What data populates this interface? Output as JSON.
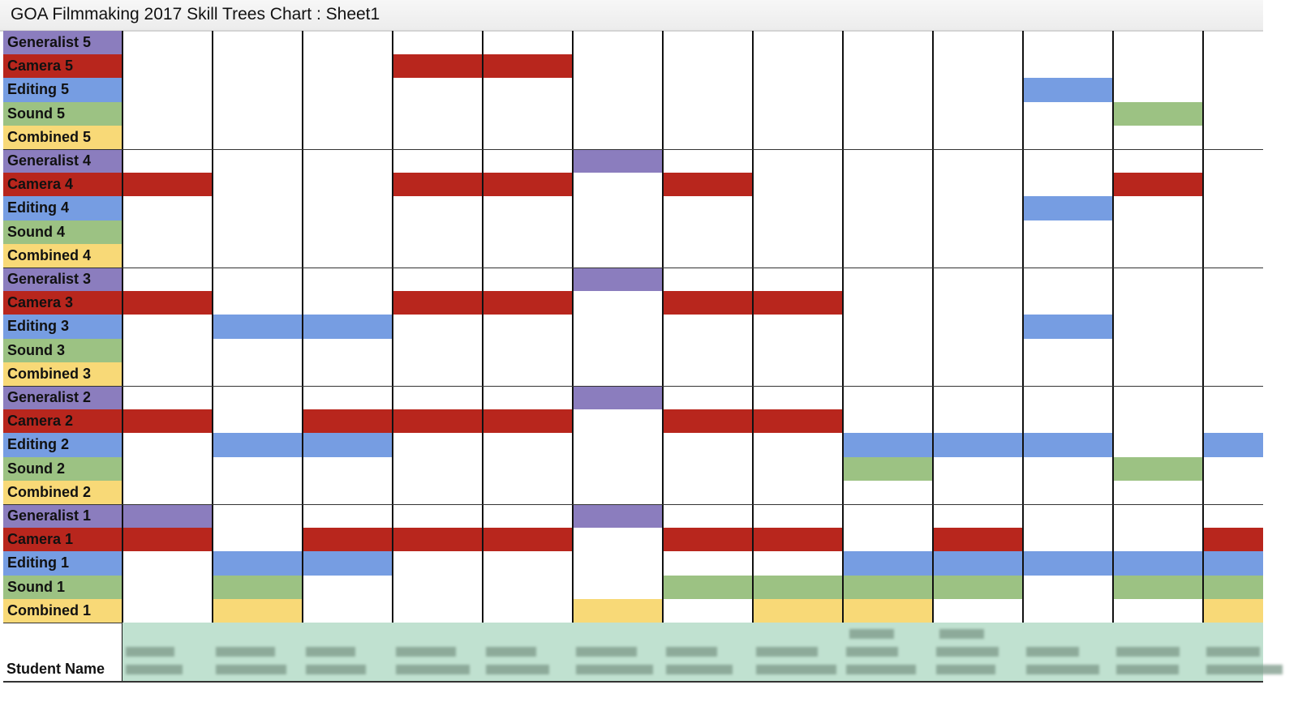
{
  "window": {
    "title": "GOA Filmmaking 2017 Skill Trees Chart : Sheet1"
  },
  "colors": {
    "Generalist": "#8b7dbe",
    "Camera": "#b8261d",
    "Editing": "#769de2",
    "Sound": "#9cc283",
    "Combined": "#f8d977",
    "student_row": "#c0e1d0"
  },
  "chart_data": {
    "type": "table",
    "title": "GOA Filmmaking 2017 Skill Trees Chart : Sheet1",
    "xlabel": "Student Name",
    "student_names_visible": false,
    "student_count_visible": 13,
    "rows": [
      {
        "label": "Generalist 5",
        "track": "Generalist",
        "filled": [
          0,
          0,
          0,
          0,
          0,
          0,
          0,
          0,
          0,
          0,
          0,
          0,
          0
        ]
      },
      {
        "label": "Camera 5",
        "track": "Camera",
        "filled": [
          0,
          0,
          0,
          1,
          1,
          0,
          0,
          0,
          0,
          0,
          0,
          0,
          0
        ]
      },
      {
        "label": "Editing 5",
        "track": "Editing",
        "filled": [
          0,
          0,
          0,
          0,
          0,
          0,
          0,
          0,
          0,
          0,
          1,
          0,
          0
        ]
      },
      {
        "label": "Sound 5",
        "track": "Sound",
        "filled": [
          0,
          0,
          0,
          0,
          0,
          0,
          0,
          0,
          0,
          0,
          0,
          1,
          0
        ]
      },
      {
        "label": "Combined 5",
        "track": "Combined",
        "filled": [
          0,
          0,
          0,
          0,
          0,
          0,
          0,
          0,
          0,
          0,
          0,
          0,
          0
        ]
      },
      {
        "label": "Generalist 4",
        "track": "Generalist",
        "filled": [
          0,
          0,
          0,
          0,
          0,
          1,
          0,
          0,
          0,
          0,
          0,
          0,
          0
        ]
      },
      {
        "label": "Camera 4",
        "track": "Camera",
        "filled": [
          1,
          0,
          0,
          1,
          1,
          0,
          1,
          0,
          0,
          0,
          0,
          1,
          0
        ]
      },
      {
        "label": "Editing 4",
        "track": "Editing",
        "filled": [
          0,
          0,
          0,
          0,
          0,
          0,
          0,
          0,
          0,
          0,
          1,
          0,
          0
        ]
      },
      {
        "label": "Sound 4",
        "track": "Sound",
        "filled": [
          0,
          0,
          0,
          0,
          0,
          0,
          0,
          0,
          0,
          0,
          0,
          0,
          0
        ]
      },
      {
        "label": "Combined 4",
        "track": "Combined",
        "filled": [
          0,
          0,
          0,
          0,
          0,
          0,
          0,
          0,
          0,
          0,
          0,
          0,
          0
        ]
      },
      {
        "label": "Generalist 3",
        "track": "Generalist",
        "filled": [
          0,
          0,
          0,
          0,
          0,
          1,
          0,
          0,
          0,
          0,
          0,
          0,
          0
        ]
      },
      {
        "label": "Camera 3",
        "track": "Camera",
        "filled": [
          1,
          0,
          0,
          1,
          1,
          0,
          1,
          1,
          0,
          0,
          0,
          0,
          0
        ]
      },
      {
        "label": "Editing 3",
        "track": "Editing",
        "filled": [
          0,
          1,
          1,
          0,
          0,
          0,
          0,
          0,
          0,
          0,
          1,
          0,
          0
        ]
      },
      {
        "label": "Sound 3",
        "track": "Sound",
        "filled": [
          0,
          0,
          0,
          0,
          0,
          0,
          0,
          0,
          0,
          0,
          0,
          0,
          0
        ]
      },
      {
        "label": "Combined 3",
        "track": "Combined",
        "filled": [
          0,
          0,
          0,
          0,
          0,
          0,
          0,
          0,
          0,
          0,
          0,
          0,
          0
        ]
      },
      {
        "label": "Generalist 2",
        "track": "Generalist",
        "filled": [
          0,
          0,
          0,
          0,
          0,
          1,
          0,
          0,
          0,
          0,
          0,
          0,
          0
        ]
      },
      {
        "label": "Camera 2",
        "track": "Camera",
        "filled": [
          1,
          0,
          1,
          1,
          1,
          0,
          1,
          1,
          0,
          0,
          0,
          0,
          0
        ]
      },
      {
        "label": "Editing 2",
        "track": "Editing",
        "filled": [
          0,
          1,
          1,
          0,
          0,
          0,
          0,
          0,
          1,
          1,
          1,
          0,
          1
        ]
      },
      {
        "label": "Sound 2",
        "track": "Sound",
        "filled": [
          0,
          0,
          0,
          0,
          0,
          0,
          0,
          0,
          1,
          0,
          0,
          1,
          0
        ]
      },
      {
        "label": "Combined 2",
        "track": "Combined",
        "filled": [
          0,
          0,
          0,
          0,
          0,
          0,
          0,
          0,
          0,
          0,
          0,
          0,
          0
        ]
      },
      {
        "label": "Generalist 1",
        "track": "Generalist",
        "filled": [
          1,
          0,
          0,
          0,
          0,
          1,
          0,
          0,
          0,
          0,
          0,
          0,
          0
        ]
      },
      {
        "label": "Camera 1",
        "track": "Camera",
        "filled": [
          1,
          0,
          1,
          1,
          1,
          0,
          1,
          1,
          0,
          1,
          0,
          0,
          1
        ]
      },
      {
        "label": "Editing 1",
        "track": "Editing",
        "filled": [
          0,
          1,
          1,
          0,
          0,
          0,
          0,
          0,
          1,
          1,
          1,
          1,
          1
        ]
      },
      {
        "label": "Sound 1",
        "track": "Sound",
        "filled": [
          0,
          1,
          0,
          0,
          0,
          0,
          1,
          1,
          1,
          1,
          0,
          1,
          1
        ]
      },
      {
        "label": "Combined 1",
        "track": "Combined",
        "filled": [
          0,
          1,
          0,
          0,
          0,
          1,
          0,
          1,
          1,
          0,
          0,
          0,
          1
        ]
      }
    ],
    "footer_label": "Student Name",
    "legend": [
      "Generalist",
      "Camera",
      "Editing",
      "Sound",
      "Combined"
    ],
    "grid": true
  }
}
